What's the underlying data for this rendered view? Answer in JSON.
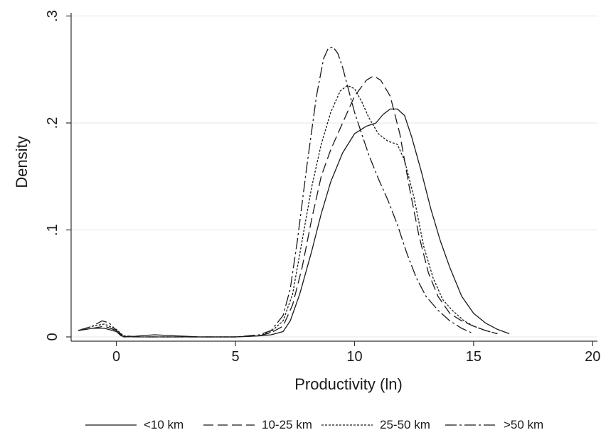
{
  "chart_data": {
    "type": "line",
    "xlabel": "Productivity (ln)",
    "ylabel": "Density",
    "xlim": [
      -1.9,
      20.2
    ],
    "ylim": [
      -0.004,
      0.303
    ],
    "xticks": [
      0,
      5,
      10,
      15,
      20
    ],
    "xtick_labels": [
      "0",
      "5",
      "10",
      "15",
      "20"
    ],
    "yticks": [
      0,
      0.1,
      0.2,
      0.3
    ],
    "ytick_labels": [
      "0",
      ".1",
      ".2",
      ".3"
    ],
    "grid": "horizontal",
    "legend_position": "bottom",
    "series": [
      {
        "name": "<10 km",
        "dash": "solid",
        "x": [
          -1.6,
          -1.0,
          -0.5,
          0.0,
          0.2,
          0.5,
          1.0,
          1.6,
          2.5,
          3.5,
          5.0,
          6.0,
          6.5,
          7.0,
          7.3,
          7.7,
          8.2,
          8.6,
          9.0,
          9.5,
          10.0,
          10.5,
          10.9,
          11.2,
          11.5,
          11.8,
          12.1,
          12.4,
          12.8,
          13.2,
          13.6,
          14.0,
          14.5,
          15.0,
          15.5,
          16.0,
          16.5
        ],
        "y": [
          0.006,
          0.008,
          0.008,
          0.005,
          0.001,
          0.0,
          0.001,
          0.002,
          0.001,
          0.0,
          0.0,
          0.001,
          0.002,
          0.005,
          0.015,
          0.04,
          0.08,
          0.115,
          0.145,
          0.172,
          0.19,
          0.197,
          0.2,
          0.208,
          0.213,
          0.213,
          0.207,
          0.187,
          0.155,
          0.12,
          0.09,
          0.065,
          0.038,
          0.022,
          0.013,
          0.007,
          0.003
        ]
      },
      {
        "name": "10-25 km",
        "dash": "long-dash",
        "x": [
          -1.6,
          -1.0,
          -0.5,
          0.0,
          0.3,
          1.0,
          2.0,
          3.0,
          4.0,
          5.0,
          6.0,
          6.5,
          7.0,
          7.4,
          7.8,
          8.2,
          8.6,
          9.0,
          9.5,
          10.0,
          10.5,
          10.8,
          11.1,
          11.5,
          11.9,
          12.3,
          12.7,
          13.1,
          13.5,
          14.0,
          14.5,
          15.0,
          15.5,
          16.0
        ],
        "y": [
          0.006,
          0.008,
          0.01,
          0.006,
          0.0,
          0.0,
          0.0,
          0.0,
          0.0,
          0.0,
          0.001,
          0.004,
          0.01,
          0.03,
          0.065,
          0.11,
          0.15,
          0.175,
          0.2,
          0.225,
          0.24,
          0.244,
          0.24,
          0.225,
          0.19,
          0.14,
          0.095,
          0.06,
          0.038,
          0.022,
          0.015,
          0.01,
          0.006,
          0.003
        ]
      },
      {
        "name": "25-50 km",
        "dash": "short-dash",
        "x": [
          -1.6,
          -1.0,
          -0.5,
          0.0,
          0.3,
          1.0,
          2.0,
          3.0,
          4.0,
          5.0,
          6.0,
          6.5,
          7.0,
          7.4,
          7.8,
          8.2,
          8.6,
          9.0,
          9.4,
          9.7,
          10.0,
          10.3,
          10.6,
          11.0,
          11.4,
          11.8,
          12.1,
          12.5,
          12.9,
          13.3,
          13.7,
          14.1,
          14.6,
          15.0,
          15.5,
          16.0
        ],
        "y": [
          0.006,
          0.01,
          0.012,
          0.007,
          0.001,
          0.0,
          0.0,
          0.0,
          0.0,
          0.0,
          0.001,
          0.005,
          0.015,
          0.04,
          0.09,
          0.14,
          0.18,
          0.21,
          0.23,
          0.235,
          0.232,
          0.22,
          0.205,
          0.19,
          0.183,
          0.18,
          0.165,
          0.13,
          0.085,
          0.055,
          0.035,
          0.025,
          0.015,
          0.01,
          0.006,
          0.003
        ]
      },
      {
        "name": ">50 km",
        "dash": "dash-dot",
        "x": [
          -1.6,
          -1.0,
          -0.6,
          -0.3,
          0.0,
          0.3,
          1.0,
          2.0,
          3.0,
          4.0,
          5.0,
          6.0,
          6.5,
          7.0,
          7.3,
          7.6,
          8.0,
          8.4,
          8.7,
          8.9,
          9.1,
          9.3,
          9.5,
          9.7,
          10.0,
          10.3,
          10.6,
          11.0,
          11.4,
          11.8,
          12.2,
          12.6,
          13.0,
          13.5,
          14.0,
          14.5,
          15.0
        ],
        "y": [
          0.006,
          0.01,
          0.015,
          0.013,
          0.006,
          0.001,
          0.0,
          0.0,
          0.0,
          0.0,
          0.0,
          0.002,
          0.006,
          0.02,
          0.045,
          0.09,
          0.16,
          0.225,
          0.26,
          0.27,
          0.271,
          0.265,
          0.252,
          0.235,
          0.21,
          0.19,
          0.17,
          0.148,
          0.128,
          0.105,
          0.078,
          0.055,
          0.038,
          0.025,
          0.015,
          0.008,
          0.003
        ]
      }
    ]
  }
}
